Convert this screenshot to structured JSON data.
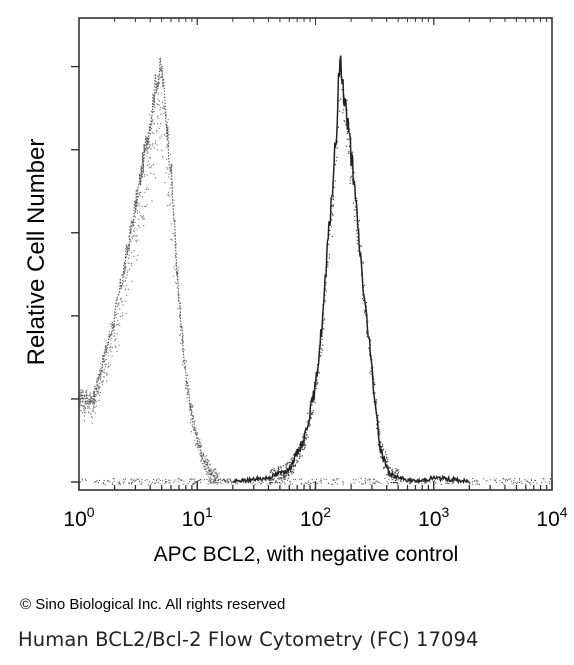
{
  "chart_data": {
    "type": "area",
    "title": "",
    "xlabel": "APC BCL2, with negative control",
    "ylabel": "Relative Cell Number",
    "x_scale": "log",
    "xlim": [
      1,
      10000
    ],
    "x_ticks": [
      {
        "value": 1,
        "base": "10",
        "exp": "0"
      },
      {
        "value": 10,
        "base": "10",
        "exp": "1"
      },
      {
        "value": 100,
        "base": "10",
        "exp": "2"
      },
      {
        "value": 1000,
        "base": "10",
        "exp": "3"
      },
      {
        "value": 10000,
        "base": "10",
        "exp": "4"
      }
    ],
    "ylim": [
      0,
      1
    ],
    "grid": false,
    "legend": "none",
    "series": [
      {
        "x": [
          1.0,
          1.3,
          1.6,
          2.0,
          2.5,
          3.2,
          4.0,
          4.5,
          5.0,
          6.0,
          7.0,
          8.0,
          9.5,
          11.0,
          13.0,
          16.0,
          20.0
        ],
        "y": [
          0.2,
          0.19,
          0.28,
          0.38,
          0.52,
          0.68,
          0.84,
          0.93,
          0.96,
          0.72,
          0.42,
          0.24,
          0.12,
          0.06,
          0.02,
          0.005,
          0.0
        ],
        "color": "#555555"
      },
      {
        "x": [
          20,
          40,
          60,
          80,
          100,
          115,
          130,
          150,
          160,
          175,
          200,
          230,
          260,
          300,
          350,
          420,
          500,
          700,
          1000,
          1500,
          2000
        ],
        "y": [
          0.0,
          0.01,
          0.03,
          0.1,
          0.22,
          0.38,
          0.58,
          0.8,
          0.98,
          0.9,
          0.76,
          0.58,
          0.42,
          0.26,
          0.08,
          0.02,
          0.01,
          0.0,
          0.01,
          0.005,
          0.0
        ],
        "color": "#222222"
      }
    ]
  },
  "copyright": "© Sino Biological Inc. All rights reserved",
  "caption": "Human BCL2/Bcl-2 Flow Cytometry (FC) 17094"
}
